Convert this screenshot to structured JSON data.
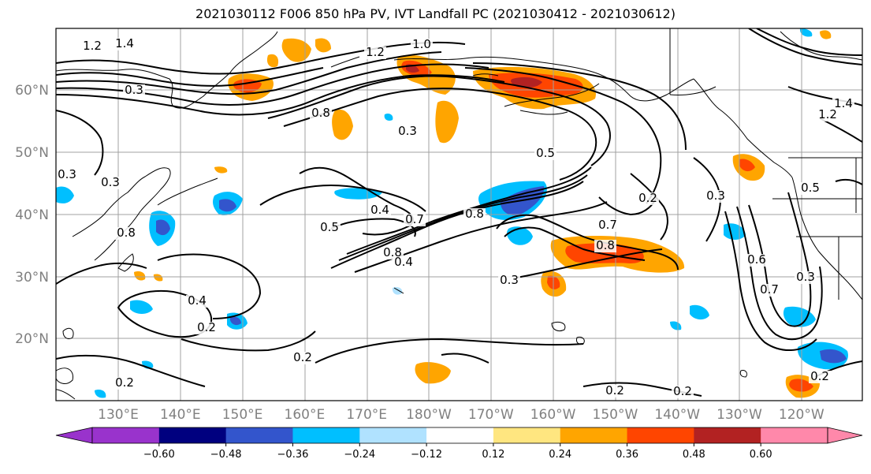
{
  "title": "2021030112 F006 850 hPa PV, IVT Landfall PC (2021030412 - 2021030612)",
  "latitude_labels": [
    "60°N",
    "50°N",
    "40°N",
    "30°N",
    "20°N"
  ],
  "longitude_labels": [
    "130°E",
    "140°E",
    "150°E",
    "160°E",
    "170°E",
    "180°W",
    "170°W",
    "160°W",
    "150°W",
    "140°W",
    "130°W",
    "120°W"
  ],
  "colorbar": {
    "ticks": [
      "−0.60",
      "−0.48",
      "−0.36",
      "−0.24",
      "−0.12",
      "0.12",
      "0.24",
      "0.36",
      "0.48",
      "0.60"
    ],
    "colors": [
      "#9933cc",
      "#00007f",
      "#3355cc",
      "#00bfff",
      "#b0e2ff",
      "#ffffff",
      "#ffe680",
      "#ffa500",
      "#ff4500",
      "#b22222",
      "#ff88aa"
    ]
  },
  "contour_labels": [
    "1.2",
    "1.4",
    "1.2",
    "1.0",
    "0.3",
    "0.8",
    "0.3",
    "0.5",
    "0.8",
    "0.3",
    "0.2",
    "0.3",
    "0.5",
    "0.3",
    "0.4",
    "0.5",
    "0.7",
    "0.8",
    "0.7",
    "0.8",
    "0.4",
    "0.3",
    "0.8",
    "0.4",
    "0.2",
    "0.2",
    "0.2",
    "0.2",
    "0.2",
    "0.6",
    "0.7",
    "0.3",
    "0.2",
    "1.4",
    "1.2"
  ],
  "colors": {
    "frame": "#000000",
    "grid": "#a0a0a0",
    "contour": "#000000",
    "tick_label": "#808080"
  }
}
